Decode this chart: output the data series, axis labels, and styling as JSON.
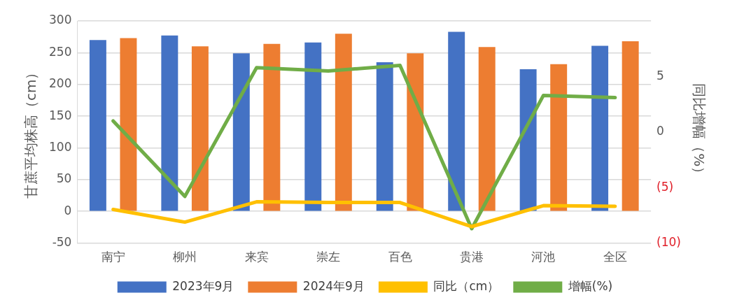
{
  "chart_data": {
    "type": "bar",
    "categories": [
      "南宁",
      "柳州",
      "来宾",
      "崇左",
      "百色",
      "贵港",
      "河池",
      "全区"
    ],
    "ylabel": "甘蔗平均株高（cm）",
    "y2label": "同比增幅（%）",
    "ylim": [
      -50,
      300
    ],
    "yticks": [
      -50,
      0,
      50,
      100,
      150,
      200,
      250,
      300
    ],
    "y2lim": [
      -10,
      10
    ],
    "y2ticks": [
      {
        "value": -10,
        "label": "(10)"
      },
      {
        "value": -5,
        "label": "(5)"
      },
      0,
      5
    ],
    "grid": "y",
    "legend": "bottom",
    "series": [
      {
        "name": "2023年9月",
        "color": "#4472c4",
        "values": [
          270,
          277,
          249,
          266,
          235,
          283,
          224,
          261
        ]
      },
      {
        "name": "2024年9月",
        "color": "#ed7d31",
        "values": [
          273,
          260,
          264,
          280,
          249,
          259,
          232,
          268
        ]
      },
      {
        "name": "同比（cm）",
        "type": "line",
        "color": "#ffc000",
        "values": [
          3,
          -17,
          15,
          14,
          14,
          -24,
          9,
          8
        ]
      },
      {
        "name": "增幅(%)",
        "type": "line",
        "axis": "y2",
        "color": "#70ad47",
        "values": [
          1.0,
          -5.8,
          5.8,
          5.5,
          6.0,
          -8.7,
          3.3,
          3.1
        ]
      }
    ]
  }
}
